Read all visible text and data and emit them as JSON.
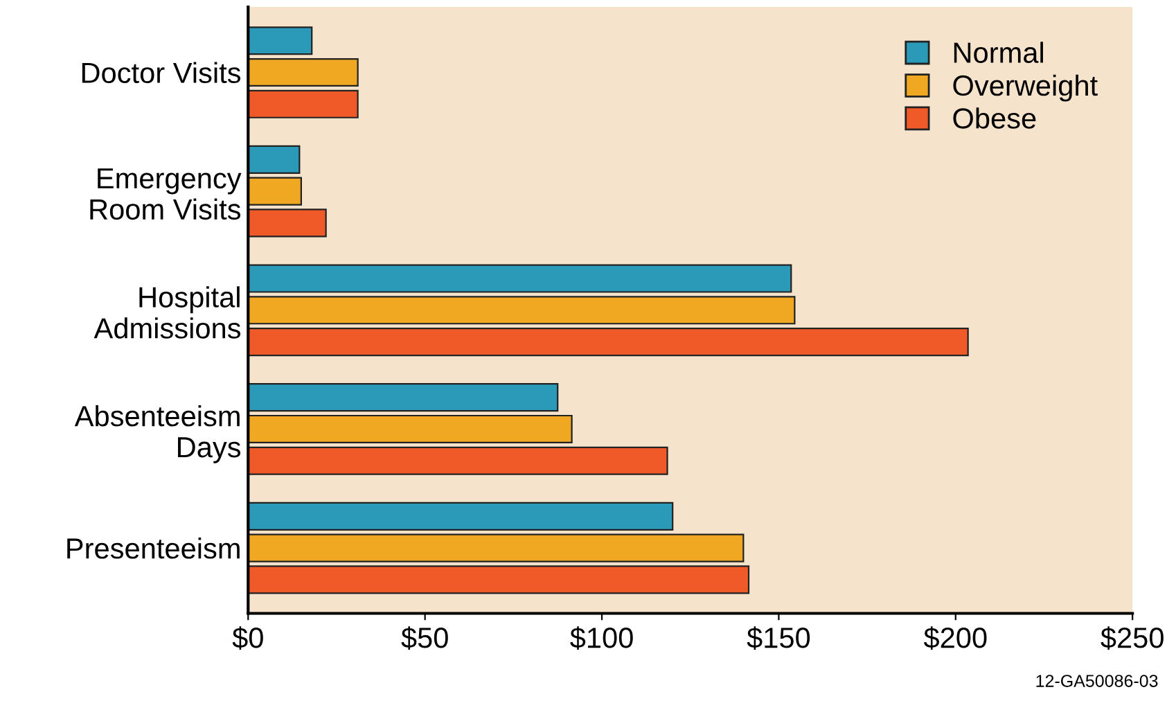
{
  "chart_data": {
    "type": "bar",
    "orientation": "horizontal",
    "categories": [
      "Doctor Visits",
      "Emergency\nRoom Visits",
      "Hospital\nAdmissions",
      "Absenteeism\nDays",
      "Presenteeism"
    ],
    "series": [
      {
        "name": "Normal",
        "color": "#2b9ab8",
        "values": [
          18,
          14.5,
          153.5,
          87.5,
          120
        ]
      },
      {
        "name": "Overweight",
        "color": "#f0a823",
        "values": [
          31,
          15,
          154.5,
          91.5,
          140
        ]
      },
      {
        "name": "Obese",
        "color": "#f05a28",
        "values": [
          31,
          22,
          203.5,
          118.5,
          141.5
        ]
      }
    ],
    "xlim": [
      0,
      250
    ],
    "xticks": [
      {
        "value": 0,
        "label": "$0"
      },
      {
        "value": 50,
        "label": "$50"
      },
      {
        "value": 100,
        "label": "$100"
      },
      {
        "value": 150,
        "label": "$150"
      },
      {
        "value": 200,
        "label": "$200"
      },
      {
        "value": 250,
        "label": "$250"
      }
    ],
    "legend": "top right",
    "grid": false,
    "annotations": [
      "12-GA50086-03"
    ]
  }
}
